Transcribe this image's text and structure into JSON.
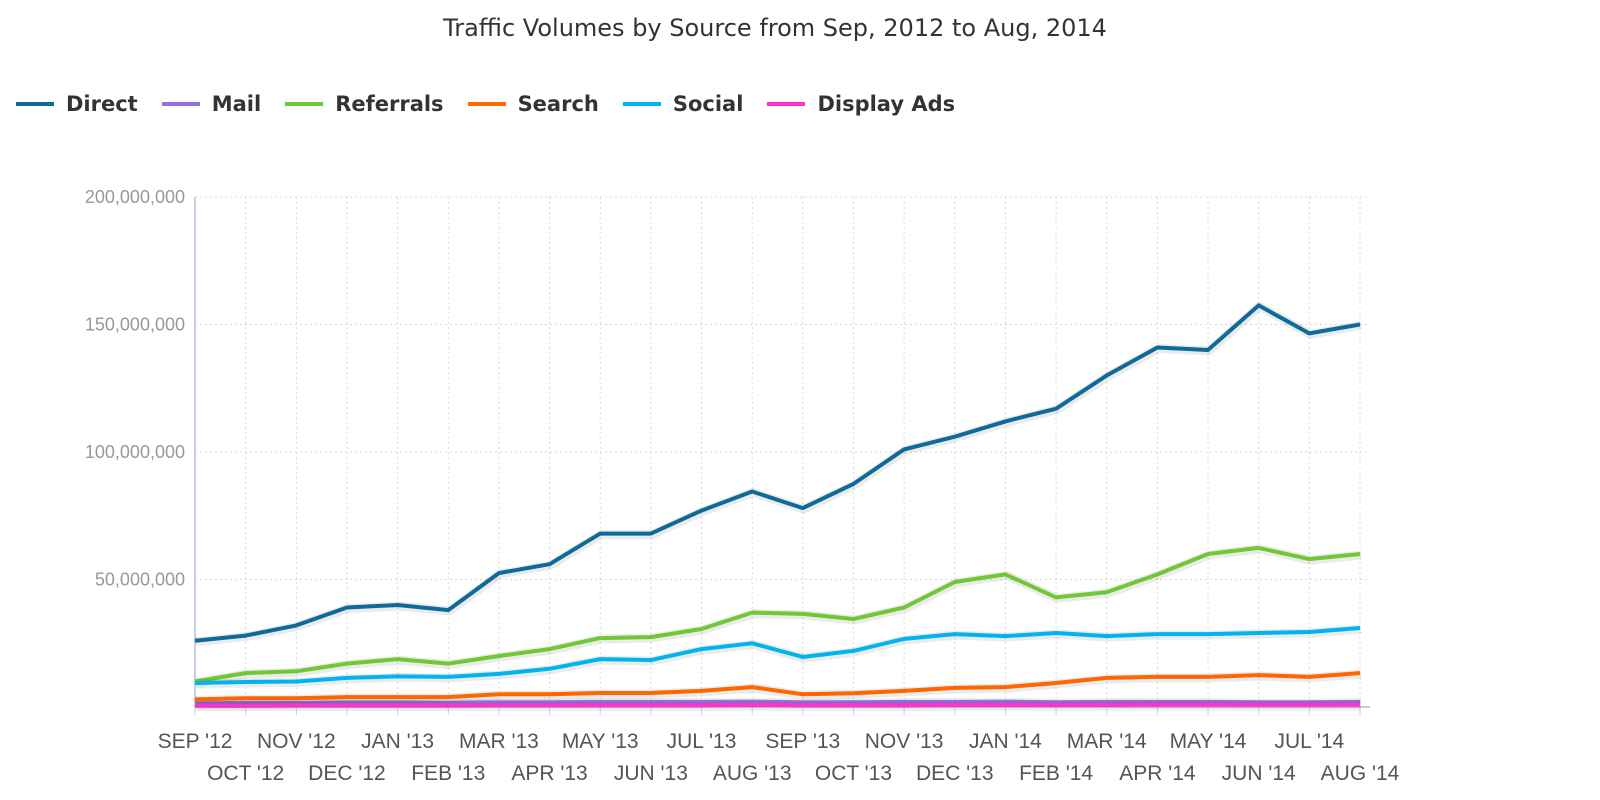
{
  "chart_data": {
    "type": "line",
    "title": "Traffic Volumes by Source from Sep, 2012 to Aug, 2014",
    "xlabel": "",
    "ylabel": "",
    "ylim": [
      0,
      200000000
    ],
    "yticks": [
      "200,000,000",
      "150,000,000",
      "100,000,000",
      "50,000,000"
    ],
    "grid": true,
    "legend": "top-left",
    "categories": [
      "SEP '12",
      "OCT '12",
      "NOV '12",
      "DEC '12",
      "JAN '13",
      "FEB '13",
      "MAR '13",
      "APR '13",
      "MAY '13",
      "JUN '13",
      "JUL '13",
      "AUG '13",
      "SEP '13",
      "OCT '13",
      "NOV '13",
      "DEC '13",
      "JAN '14",
      "FEB '14",
      "MAR '14",
      "APR '14",
      "MAY '14",
      "JUN '14",
      "JUL '14",
      "AUG '14"
    ],
    "series": [
      {
        "name": "Direct",
        "color": "#0d6a99",
        "values": [
          26000000,
          28000000,
          32000000,
          39000000,
          40000000,
          38000000,
          52500000,
          56000000,
          68000000,
          68000000,
          77000000,
          84500000,
          78000000,
          87500000,
          101000000,
          106000000,
          112000000,
          117000000,
          130000000,
          141000000,
          140000000,
          157500000,
          146500000,
          150000000
        ]
      },
      {
        "name": "Mail",
        "color": "#9370db",
        "values": [
          1500000,
          1600000,
          1600000,
          1800000,
          1800000,
          1700000,
          1900000,
          1900000,
          2000000,
          2000000,
          2000000,
          2100000,
          1900000,
          1900000,
          2000000,
          2000000,
          2100000,
          1900000,
          2000000,
          2000000,
          2000000,
          1900000,
          1900000,
          2000000
        ]
      },
      {
        "name": "Referrals",
        "color": "#71c837",
        "values": [
          10000000,
          13300000,
          14000000,
          17000000,
          18800000,
          17000000,
          20000000,
          22700000,
          27000000,
          27400000,
          30600000,
          37000000,
          36500000,
          34500000,
          39000000,
          49000000,
          52000000,
          43000000,
          45000000,
          52000000,
          60000000,
          62400000,
          58000000,
          60000000
        ]
      },
      {
        "name": "Search",
        "color": "#ff6600",
        "values": [
          3000000,
          3400000,
          3400000,
          3900000,
          3900000,
          3900000,
          5000000,
          5000000,
          5500000,
          5500000,
          6300000,
          7800000,
          5000000,
          5400000,
          6300000,
          7500000,
          7800000,
          9400000,
          11400000,
          11800000,
          11800000,
          12500000,
          11800000,
          13300000
        ]
      },
      {
        "name": "Social",
        "color": "#00b5ee",
        "values": [
          9400000,
          9800000,
          10000000,
          11400000,
          12000000,
          11800000,
          13000000,
          15000000,
          18800000,
          18400000,
          22700000,
          25000000,
          19600000,
          22000000,
          26700000,
          28600000,
          27800000,
          29000000,
          27800000,
          28600000,
          28600000,
          29000000,
          29400000,
          31000000
        ]
      },
      {
        "name": "Display Ads",
        "color": "#ff33cc",
        "values": [
          500000,
          500000,
          600000,
          600000,
          600000,
          600000,
          700000,
          700000,
          700000,
          700000,
          700000,
          800000,
          700000,
          700000,
          700000,
          800000,
          800000,
          800000,
          800000,
          900000,
          900000,
          900000,
          900000,
          900000
        ]
      }
    ]
  }
}
